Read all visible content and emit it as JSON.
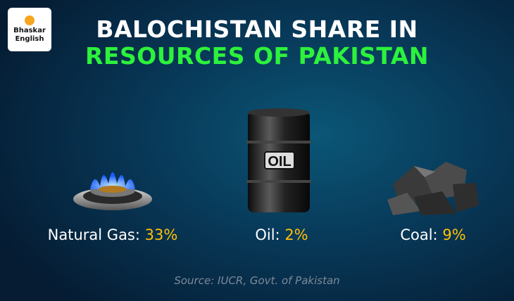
{
  "logo": {
    "line1": "Bhaskar",
    "line2": "English",
    "dot_color": "#f7a520"
  },
  "title": {
    "line1": "BALOCHISTAN SHARE IN",
    "line2": "RESOURCES OF PAKISTAN",
    "line2_color": "#2cf23c"
  },
  "resources": [
    {
      "name": "Natural Gas:",
      "value": "33%",
      "icon": "gas-burner-icon"
    },
    {
      "name": "Oil:",
      "value": "2%",
      "icon": "oil-barrel-icon",
      "barrel_text": "OIL"
    },
    {
      "name": "Coal:",
      "value": "9%",
      "icon": "coal-icon"
    }
  ],
  "value_color": "#ffc107",
  "source": "Source: IUCR, Govt. of Pakistan"
}
